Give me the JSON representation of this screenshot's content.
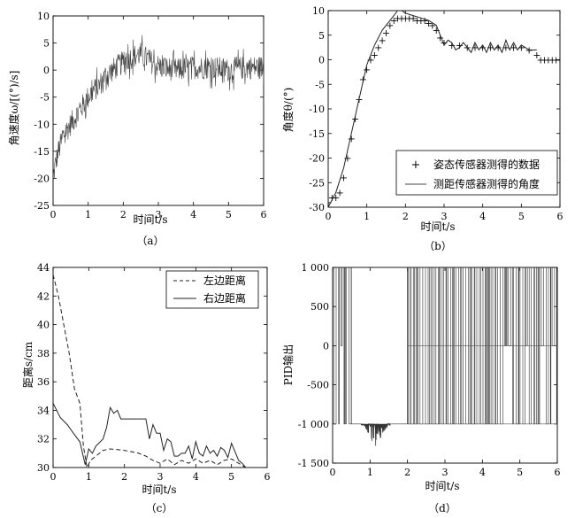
{
  "chart_data": [
    {
      "id": "a",
      "type": "line",
      "caption": "（a）",
      "xlabel": "时间t/s",
      "ylabel": "角速度ω/[(°)/s]",
      "xlim": [
        0,
        6
      ],
      "ylim": [
        -25,
        10
      ],
      "xticks": [
        0,
        1,
        2,
        3,
        4,
        5,
        6
      ],
      "yticks": [
        -25,
        -20,
        -15,
        -10,
        -5,
        0,
        5,
        10
      ],
      "xtick_labels": [
        "0",
        "1",
        "2",
        "3",
        "4",
        "5",
        "6"
      ],
      "ytick_labels": [
        "-25",
        "-20",
        "-15",
        "-10",
        "-5",
        "0",
        "5",
        "10"
      ],
      "grid": false,
      "series": [
        {
          "style": "noisy",
          "noise": 2.2,
          "x": [
            0,
            0.05,
            0.15,
            0.3,
            0.5,
            0.7,
            0.9,
            1.1,
            1.3,
            1.5,
            1.7,
            1.9,
            2.1,
            2.3,
            2.5,
            2.7,
            2.9,
            3.1,
            3.5,
            4.0,
            4.5,
            5.0,
            5.5,
            6.0
          ],
          "y": [
            -20,
            -18,
            -15,
            -12,
            -10,
            -8,
            -6,
            -4,
            -3,
            -1,
            0,
            1,
            2,
            2.5,
            3,
            2,
            1,
            0.5,
            0,
            0.5,
            0.5,
            0,
            0.5,
            0.5
          ]
        }
      ]
    },
    {
      "id": "b",
      "type": "line",
      "caption": "（b）",
      "xlabel": "时间t/s",
      "ylabel": "角度θ/(°)",
      "xlim": [
        0,
        6
      ],
      "ylim": [
        -30,
        10
      ],
      "xticks": [
        0,
        1,
        2,
        3,
        4,
        5,
        6
      ],
      "yticks": [
        -30,
        -25,
        -20,
        -15,
        -10,
        -5,
        0,
        5,
        10
      ],
      "xtick_labels": [
        "0",
        "1",
        "2",
        "3",
        "4",
        "5",
        "6"
      ],
      "ytick_labels": [
        "-30",
        "-25",
        "-20",
        "-15",
        "-10",
        "-5",
        "0",
        "5",
        "10"
      ],
      "grid": false,
      "legend": "bottom-right",
      "series": [
        {
          "name": "姿态传感器测得的数据",
          "style": "markers",
          "x": [
            0,
            0.1,
            0.2,
            0.3,
            0.4,
            0.5,
            0.6,
            0.7,
            0.8,
            0.9,
            1.0,
            1.1,
            1.2,
            1.3,
            1.4,
            1.5,
            1.6,
            1.7,
            1.8,
            1.9,
            2.0,
            2.1,
            2.2,
            2.3,
            2.4,
            2.5,
            2.6,
            2.7,
            2.8,
            2.9,
            3.0,
            3.2,
            3.4,
            3.6,
            3.8,
            4.0,
            4.2,
            4.4,
            4.6,
            4.8,
            5.0,
            5.2,
            5.4,
            5.5,
            5.6,
            5.7,
            5.8,
            5.9,
            6.0
          ],
          "y": [
            -29,
            -28,
            -28,
            -27,
            -24,
            -20,
            -16,
            -12,
            -8,
            -4,
            -2,
            0,
            1,
            2.5,
            4,
            5.5,
            7,
            8,
            8.5,
            8.5,
            8.5,
            8.5,
            8.5,
            8,
            8,
            8,
            7.5,
            7,
            6,
            4.5,
            3.5,
            3,
            3,
            2.5,
            2.5,
            2.5,
            2.5,
            2.5,
            2.5,
            2.5,
            2.5,
            2,
            1,
            0,
            0,
            0,
            0,
            0,
            0
          ]
        },
        {
          "name": "测距传感器测得的角度",
          "style": "line",
          "x": [
            0,
            0.2,
            0.4,
            0.6,
            0.8,
            1.0,
            1.2,
            1.4,
            1.6,
            1.8,
            1.9,
            2.0,
            2.2,
            2.4,
            2.6,
            2.8,
            2.9,
            3.0,
            3.1,
            3.2,
            3.3,
            3.4,
            3.5,
            3.6,
            3.7,
            3.8,
            3.9,
            4.0,
            4.1,
            4.2,
            4.3,
            4.4,
            4.5,
            4.6,
            4.7,
            4.8,
            4.9,
            5.0,
            5.1,
            5.2,
            5.3,
            5.4
          ],
          "y": [
            -30,
            -27,
            -22,
            -15,
            -8,
            -1,
            3,
            6,
            8,
            10,
            10,
            9.5,
            9,
            8.5,
            8,
            7,
            5,
            3,
            4,
            3.5,
            2,
            2.5,
            3.5,
            2.5,
            1.5,
            3.5,
            2,
            3,
            1.5,
            3.5,
            2,
            3,
            1.5,
            4,
            2,
            3.5,
            2,
            3,
            2.5,
            2,
            2,
            2
          ]
        }
      ]
    },
    {
      "id": "c",
      "type": "line",
      "caption": "（c）",
      "xlabel": "时间t/s",
      "ylabel": "距离s/cm",
      "xlim": [
        0,
        6
      ],
      "ylim": [
        30,
        44
      ],
      "xticks": [
        0,
        1,
        2,
        3,
        4,
        5,
        6
      ],
      "yticks": [
        30,
        32,
        34,
        36,
        38,
        40,
        42,
        44
      ],
      "xtick_labels": [
        "0",
        "1",
        "2",
        "3",
        "4",
        "5",
        "6"
      ],
      "ytick_labels": [
        "30",
        "32",
        "34",
        "36",
        "38",
        "40",
        "42",
        "44"
      ],
      "grid": false,
      "legend": "top-right",
      "series": [
        {
          "name": "左边距离",
          "style": "dashed",
          "x": [
            0,
            0.15,
            0.3,
            0.45,
            0.6,
            0.75,
            0.85,
            0.95,
            1.05,
            1.2,
            1.4,
            1.6,
            2.0,
            2.4,
            2.6,
            2.8,
            3.0,
            3.2,
            3.4,
            3.6,
            3.8,
            4.0,
            4.2,
            4.4,
            4.6,
            4.8,
            5.0,
            5.2,
            5.4
          ],
          "y": [
            43.5,
            42,
            40,
            38,
            35.5,
            34.5,
            31.5,
            30,
            30.5,
            30.8,
            31.2,
            31.3,
            31.2,
            31.0,
            30.8,
            30.5,
            30.3,
            30.6,
            30.2,
            30.5,
            30.3,
            30.6,
            30.3,
            30.5,
            30.2,
            30.5,
            30.6,
            30.3,
            30
          ]
        },
        {
          "name": "右边距离",
          "style": "solid",
          "x": [
            0,
            0.2,
            0.4,
            0.6,
            0.75,
            0.9,
            1.0,
            1.1,
            1.2,
            1.4,
            1.5,
            1.6,
            1.7,
            1.8,
            1.9,
            2.0,
            2.2,
            2.4,
            2.6,
            2.7,
            2.8,
            2.9,
            3.0,
            3.1,
            3.2,
            3.3,
            3.4,
            3.5,
            3.6,
            3.7,
            3.8,
            3.9,
            4.0,
            4.1,
            4.2,
            4.3,
            4.4,
            4.5,
            4.6,
            4.7,
            4.8,
            4.9,
            5.0,
            5.1,
            5.2,
            5.3,
            5.4
          ],
          "y": [
            34.5,
            33.5,
            33,
            32.3,
            31.8,
            30.2,
            31.3,
            31.0,
            31.5,
            32.0,
            32.8,
            34.2,
            33.8,
            34.0,
            33.4,
            33.4,
            33.4,
            33.4,
            33.4,
            32.0,
            33.0,
            32.4,
            32.4,
            31.2,
            32.0,
            31.8,
            30.8,
            30.8,
            31.0,
            31.0,
            31.5,
            30.6,
            31.8,
            31.0,
            30.8,
            31.5,
            31.0,
            31.2,
            30.8,
            31.4,
            31.2,
            30.7,
            31.7,
            31.1,
            30.5,
            30.3,
            30
          ]
        }
      ]
    },
    {
      "id": "d",
      "type": "line",
      "caption": "（d）",
      "xlabel": "时间t/s",
      "ylabel": "PID输出",
      "xlim": [
        0,
        6
      ],
      "ylim": [
        -1500,
        1000
      ],
      "xticks": [
        0,
        1,
        2,
        3,
        4,
        5,
        6
      ],
      "yticks": [
        -1500,
        -1000,
        -500,
        0,
        500,
        1000
      ],
      "xtick_labels": [
        "0",
        "1",
        "2",
        "3",
        "4",
        "5",
        "6"
      ],
      "ytick_labels": [
        "-1 500",
        "-1 000",
        "-500",
        "0",
        "500",
        "1 000"
      ],
      "grid": false,
      "series": [
        {
          "style": "switching",
          "high": 1000,
          "low": -1000,
          "dip_min": -1300,
          "switch_segments": [
            [
              0,
              0.5
            ],
            [
              2.0,
              6.0
            ]
          ],
          "low_segment": [
            0.5,
            2.0
          ]
        }
      ]
    }
  ]
}
